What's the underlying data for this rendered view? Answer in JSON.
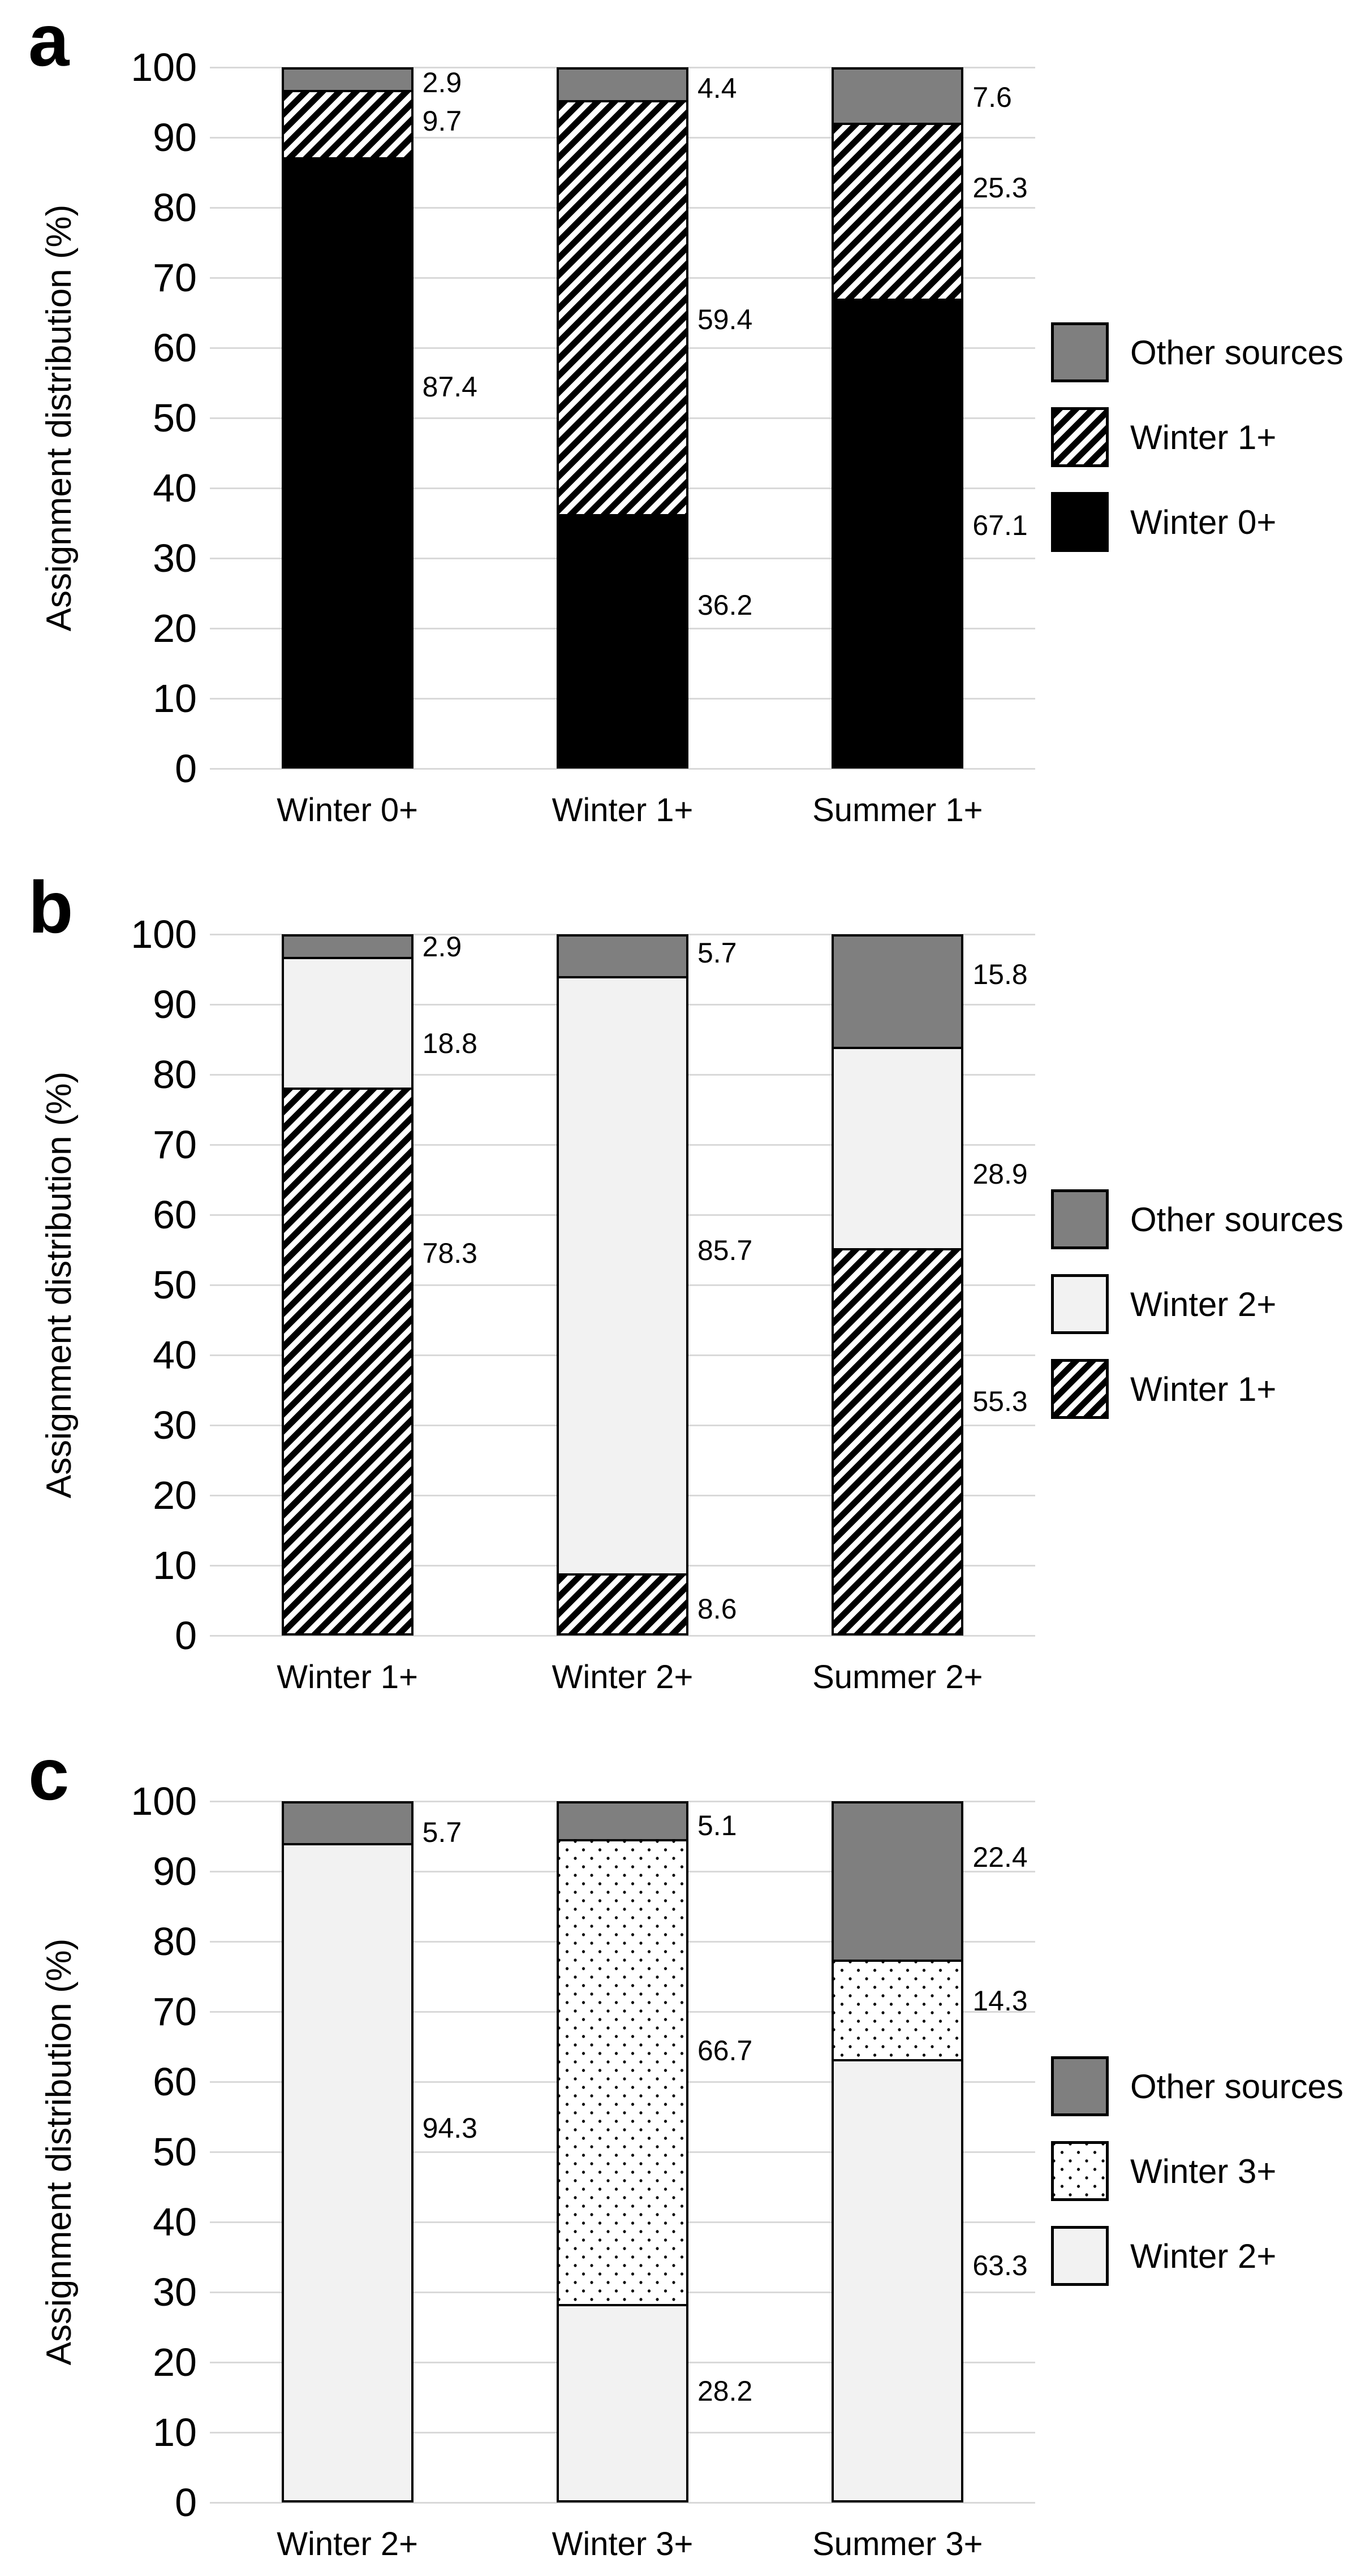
{
  "axis": {
    "ylabel": "Assignment distribution (%)",
    "yticks": [
      100,
      90,
      80,
      70,
      60,
      50,
      40,
      30,
      20,
      10,
      0
    ]
  },
  "colors": {
    "other_sources_gray": "#7f7f7f",
    "light_fill": "#f2f2f2",
    "black_fill": "#000000",
    "gridline": "#d9d9d9",
    "background": "#ffffff"
  },
  "chart_data": [
    {
      "panel_label": "a",
      "type": "bar",
      "stacked": true,
      "grid": true,
      "legend_position": "right",
      "ylabel": "Assignment distribution (%)",
      "ylim": [
        0,
        100
      ],
      "categories": [
        "Winter 0+",
        "Winter 1+",
        "Summer 1+"
      ],
      "series": [
        {
          "name": "Winter 0+",
          "pattern": "black",
          "values": [
            87.4,
            36.2,
            67.1
          ]
        },
        {
          "name": "Winter 1+",
          "pattern": "hatch",
          "values": [
            9.7,
            59.4,
            25.3
          ]
        },
        {
          "name": "Other sources",
          "pattern": "gray",
          "values": [
            2.9,
            4.4,
            7.6
          ]
        }
      ],
      "legend": [
        {
          "label": "Other sources",
          "pattern": "gray"
        },
        {
          "label": "Winter 1+",
          "pattern": "hatch"
        },
        {
          "label": "Winter 0+",
          "pattern": "black"
        }
      ],
      "value_labels": [
        {
          "text": "2.9",
          "bar": 0,
          "at": 97.8
        },
        {
          "text": "9.7",
          "bar": 0,
          "at": 92.3
        },
        {
          "text": "87.4",
          "bar": 0,
          "at": 54.4
        },
        {
          "text": "4.4",
          "bar": 1,
          "at": 97.0
        },
        {
          "text": "59.4",
          "bar": 1,
          "at": 64.0
        },
        {
          "text": "36.2",
          "bar": 1,
          "at": 23.3
        },
        {
          "text": "7.6",
          "bar": 2,
          "at": 95.7
        },
        {
          "text": "25.3",
          "bar": 2,
          "at": 82.8
        },
        {
          "text": "67.1",
          "bar": 2,
          "at": 34.7
        }
      ]
    },
    {
      "panel_label": "b",
      "type": "bar",
      "stacked": true,
      "grid": true,
      "legend_position": "right",
      "ylabel": "Assignment distribution (%)",
      "ylim": [
        0,
        100
      ],
      "categories": [
        "Winter 1+",
        "Winter 2+",
        "Summer 2+"
      ],
      "series": [
        {
          "name": "Winter 1+",
          "pattern": "hatch",
          "values": [
            78.3,
            8.6,
            55.3
          ]
        },
        {
          "name": "Winter 2+",
          "pattern": "light",
          "values": [
            18.8,
            85.7,
            28.9
          ]
        },
        {
          "name": "Other sources",
          "pattern": "gray",
          "values": [
            2.9,
            5.7,
            15.8
          ]
        }
      ],
      "legend": [
        {
          "label": "Other sources",
          "pattern": "gray"
        },
        {
          "label": "Winter 2+",
          "pattern": "light"
        },
        {
          "label": "Winter 1+",
          "pattern": "hatch"
        }
      ],
      "value_labels": [
        {
          "text": "2.9",
          "bar": 0,
          "at": 98.2
        },
        {
          "text": "18.8",
          "bar": 0,
          "at": 84.4
        },
        {
          "text": "78.3",
          "bar": 0,
          "at": 54.5
        },
        {
          "text": "5.7",
          "bar": 1,
          "at": 97.3
        },
        {
          "text": "85.7",
          "bar": 1,
          "at": 54.9
        },
        {
          "text": "8.6",
          "bar": 1,
          "at": 3.8
        },
        {
          "text": "15.8",
          "bar": 2,
          "at": 94.3
        },
        {
          "text": "28.9",
          "bar": 2,
          "at": 65.8
        },
        {
          "text": "55.3",
          "bar": 2,
          "at": 33.4
        }
      ]
    },
    {
      "panel_label": "c",
      "type": "bar",
      "stacked": true,
      "grid": true,
      "legend_position": "right",
      "ylabel": "Assignment distribution (%)",
      "ylim": [
        0,
        100
      ],
      "categories": [
        "Winter 2+",
        "Winter 3+",
        "Summer 3+"
      ],
      "series": [
        {
          "name": "Winter 2+",
          "pattern": "light",
          "values": [
            94.3,
            28.2,
            63.3
          ]
        },
        {
          "name": "Winter 3+",
          "pattern": "dots",
          "values": [
            0,
            66.7,
            14.3
          ]
        },
        {
          "name": "Other sources",
          "pattern": "gray",
          "values": [
            5.7,
            5.1,
            22.4
          ]
        }
      ],
      "legend": [
        {
          "label": "Other sources",
          "pattern": "gray"
        },
        {
          "label": "Winter 3+",
          "pattern": "dots"
        },
        {
          "label": "Winter 2+",
          "pattern": "light"
        }
      ],
      "value_labels": [
        {
          "text": "5.7",
          "bar": 0,
          "at": 95.6
        },
        {
          "text": "94.3",
          "bar": 0,
          "at": 53.4
        },
        {
          "text": "5.1",
          "bar": 1,
          "at": 96.5
        },
        {
          "text": "66.7",
          "bar": 1,
          "at": 64.4
        },
        {
          "text": "28.2",
          "bar": 1,
          "at": 15.9
        },
        {
          "text": "22.4",
          "bar": 2,
          "at": 92.0
        },
        {
          "text": "14.3",
          "bar": 2,
          "at": 71.5
        },
        {
          "text": "63.3",
          "bar": 2,
          "at": 33.8
        }
      ]
    }
  ]
}
